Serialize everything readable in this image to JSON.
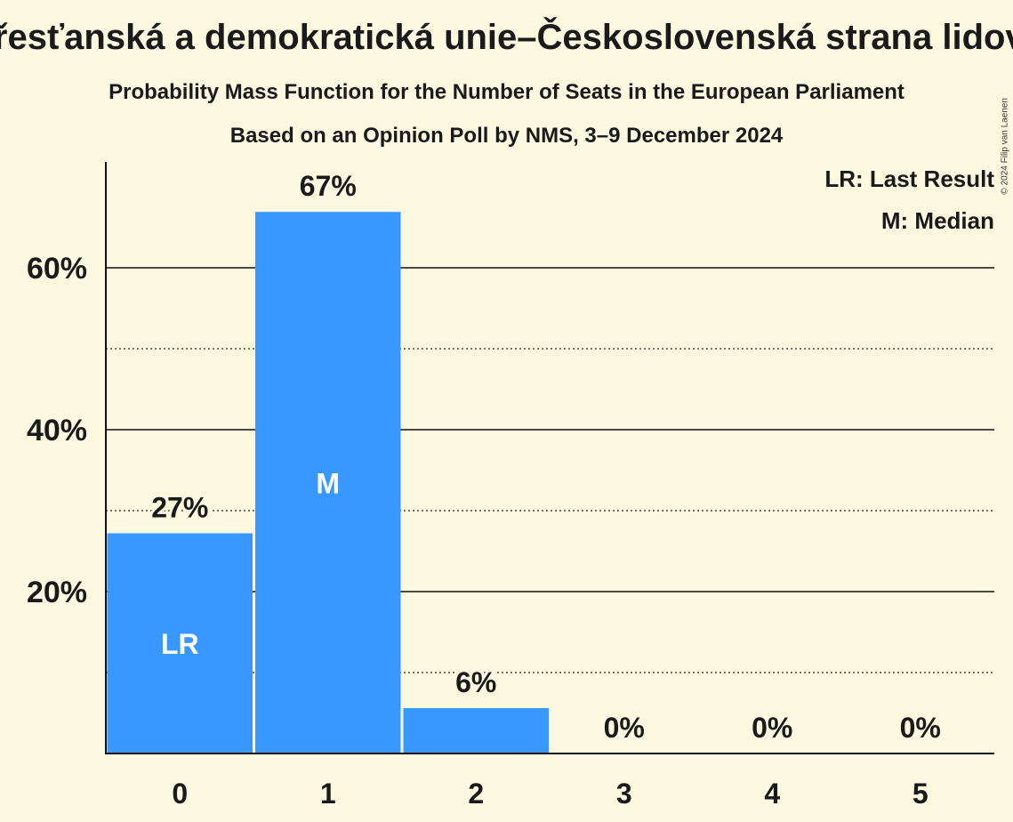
{
  "chart_data": {
    "type": "bar",
    "title": "Křesťanská a demokratická unie–Československá strana lidová",
    "subtitle": "Probability Mass Function for the Number of Seats in the European Parliament",
    "subtitle2": "Based on an Opinion Poll by NMS, 3–9 December 2024",
    "categories": [
      "0",
      "1",
      "2",
      "3",
      "4",
      "5"
    ],
    "values": [
      27.2,
      66.9,
      5.6,
      0,
      0,
      0
    ],
    "data_labels": [
      "27%",
      "67%",
      "6%",
      "0%",
      "0%",
      "0%"
    ],
    "bar_markers": [
      "LR",
      "M",
      "",
      "",
      "",
      ""
    ],
    "ylim": [
      0,
      73
    ],
    "yticks": [
      20,
      40,
      60
    ],
    "ytick_labels": [
      "20%",
      "40%",
      "60%"
    ],
    "minor_gridlines": [
      10,
      30,
      50
    ],
    "xlabel": "",
    "ylabel": "",
    "legend": [
      "LR: Last Result",
      "M: Median"
    ],
    "legend_position": "top-right",
    "bar_color": "#3898ff",
    "copyright": "© 2024 Filip van Laenen"
  }
}
